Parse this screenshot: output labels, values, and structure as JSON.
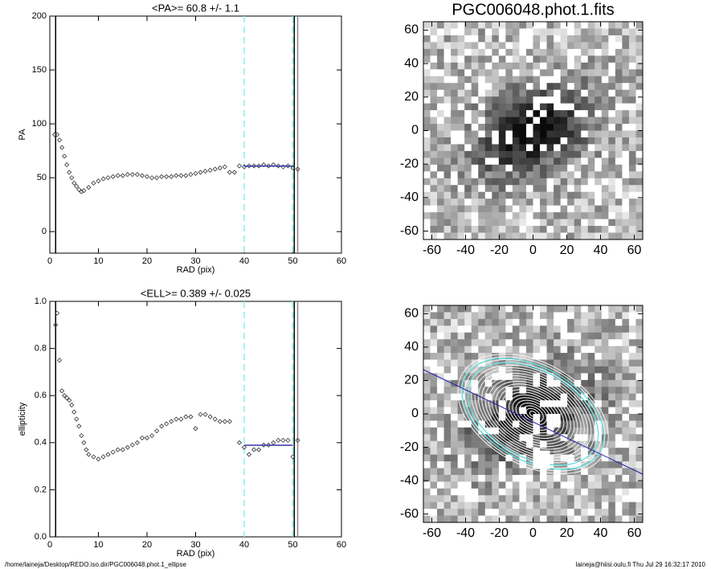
{
  "chart_data": [
    {
      "type": "profile",
      "title": "<PA>=  60.8 +/-   1.1",
      "x_label": "RAD (pix)",
      "y_label": "PA",
      "xlim": [
        0,
        60
      ],
      "xticks": [
        0,
        10,
        20,
        30,
        40,
        50,
        60
      ],
      "ylim": [
        -20,
        200
      ],
      "yticks": [
        0,
        50,
        100,
        150,
        200
      ],
      "series": [
        {
          "name": "PA",
          "color": "#333333",
          "x": [
            1,
            1.5,
            2,
            2.5,
            3,
            3.5,
            4,
            4.5,
            5,
            5.5,
            6,
            6.5,
            7,
            8,
            9,
            10,
            11,
            12,
            13,
            14,
            15,
            16,
            17,
            18,
            19,
            20,
            21,
            22,
            23,
            24,
            25,
            26,
            27,
            28,
            29,
            30,
            31,
            32,
            33,
            34,
            35,
            36,
            37,
            38,
            39,
            40,
            41,
            42,
            43,
            44,
            45,
            46,
            47,
            48,
            49,
            50,
            51
          ],
          "values": [
            90,
            90,
            85,
            78,
            70,
            62,
            55,
            50,
            45,
            42,
            39,
            37,
            38,
            41,
            45,
            47,
            49,
            50,
            51,
            52,
            52,
            53,
            53,
            53,
            52,
            51,
            50,
            50,
            51,
            51,
            51,
            52,
            52,
            52,
            53,
            54,
            55,
            56,
            57,
            58,
            59,
            60,
            55,
            55,
            61,
            60,
            61,
            61,
            61,
            62,
            61,
            62,
            61,
            60,
            61,
            59,
            58
          ]
        }
      ],
      "vlines": [
        {
          "x": 1.2,
          "color": "#000000"
        },
        {
          "x": 40,
          "color": "#88eeee",
          "dashed": true
        },
        {
          "x": 50,
          "color": "#88eeee",
          "dashed": true
        },
        {
          "x": 50.3,
          "color": "#000000"
        },
        {
          "x": 51,
          "color": "#888888"
        }
      ],
      "fit": {
        "x": [
          40,
          50
        ],
        "value": 60.8,
        "color": "#3333aa"
      }
    },
    {
      "type": "profile",
      "title": "<ELL>= 0.389 +/-  0.025",
      "x_label": "RAD (pix)",
      "y_label": "ellipticity",
      "xlim": [
        0,
        60
      ],
      "xticks": [
        0,
        10,
        20,
        30,
        40,
        50,
        60
      ],
      "ylim": [
        0,
        1
      ],
      "yticks": [
        {
          "value": 0,
          "label": "0.0"
        },
        0.2,
        0.4,
        0.6,
        0.8,
        {
          "value": 1,
          "label": "1.0"
        }
      ],
      "series": [
        {
          "name": "ellipticity",
          "color": "#333333",
          "x": [
            1.2,
            1.5,
            2,
            2.5,
            3,
            3.5,
            4,
            4.5,
            5,
            5.5,
            6,
            6.5,
            7,
            7.5,
            8,
            9,
            10,
            11,
            12,
            13,
            14,
            15,
            16,
            17,
            18,
            19,
            20,
            21,
            22,
            23,
            24,
            25,
            26,
            27,
            28,
            29,
            30,
            31,
            32,
            33,
            34,
            35,
            36,
            37,
            39,
            40,
            41,
            42,
            43,
            44,
            45,
            46,
            47,
            48,
            49,
            50,
            51
          ],
          "values": [
            0.9,
            0.95,
            0.75,
            0.62,
            0.6,
            0.59,
            0.58,
            0.56,
            0.53,
            0.5,
            0.47,
            0.43,
            0.4,
            0.37,
            0.35,
            0.34,
            0.33,
            0.34,
            0.35,
            0.36,
            0.37,
            0.37,
            0.38,
            0.39,
            0.4,
            0.42,
            0.42,
            0.43,
            0.45,
            0.47,
            0.48,
            0.49,
            0.5,
            0.5,
            0.51,
            0.51,
            0.46,
            0.52,
            0.52,
            0.51,
            0.5,
            0.49,
            0.49,
            0.49,
            0.4,
            0.38,
            0.35,
            0.37,
            0.37,
            0.39,
            0.39,
            0.4,
            0.41,
            0.41,
            0.41,
            0.34,
            0.41
          ]
        }
      ],
      "vlines": [
        {
          "x": 1.2,
          "color": "#000000"
        },
        {
          "x": 40,
          "color": "#88eeee",
          "dashed": true
        },
        {
          "x": 50,
          "color": "#88eeee",
          "dashed": true
        },
        {
          "x": 50.3,
          "color": "#000000"
        },
        {
          "x": 51,
          "color": "#888888"
        }
      ],
      "fit": {
        "x": [
          40,
          50
        ],
        "value": 0.389,
        "color": "#3333aa"
      }
    },
    {
      "type": "image",
      "title": "PGC006048.phot.1.fits",
      "xlim": [
        -65,
        65
      ],
      "xticks": [
        -60,
        -40,
        -20,
        0,
        20,
        40,
        60
      ],
      "ylim": [
        -65,
        65
      ],
      "yticks": [
        -60,
        -40,
        -20,
        0,
        20,
        40,
        60
      ]
    },
    {
      "type": "image",
      "overlay": true,
      "xlim": [
        -65,
        65
      ],
      "xticks": [
        -60,
        -40,
        -20,
        0,
        20,
        40,
        60
      ],
      "ylim": [
        -65,
        65
      ],
      "yticks": [
        -60,
        -40,
        -20,
        0,
        20,
        40,
        60
      ]
    }
  ],
  "footer": {
    "left": "/home/laineja/Desktop/REDO.iso.dir/PGC006048.phot.1_ellipse",
    "right": "laineja@hiisi.oulu.fi  Thu Jul 29 16:32:17 2010"
  }
}
